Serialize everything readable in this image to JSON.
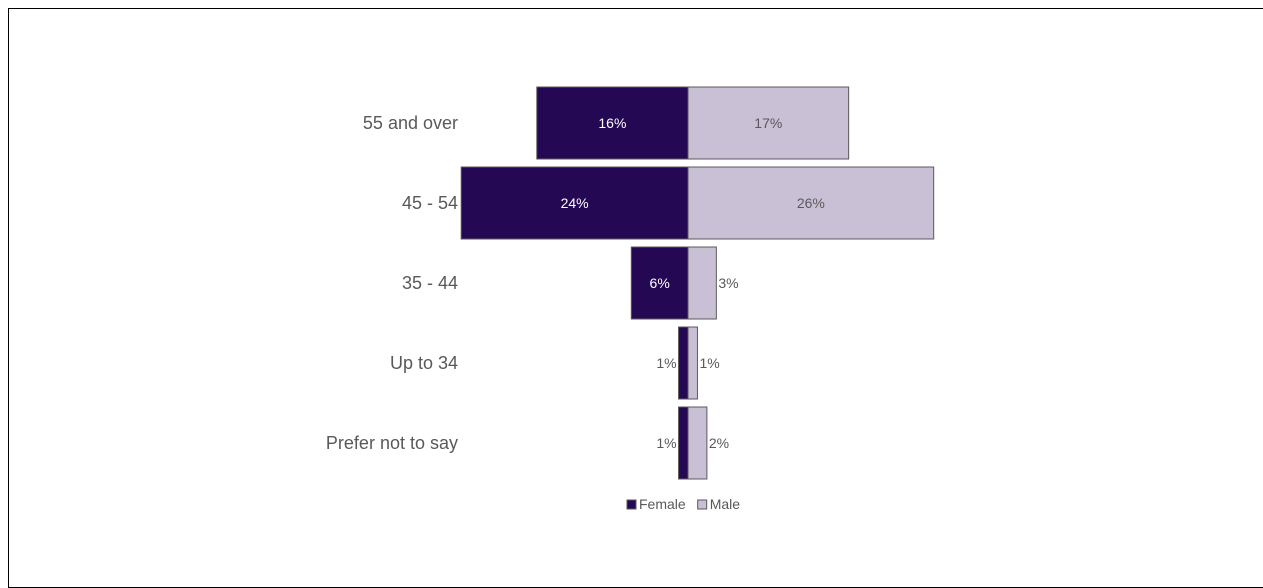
{
  "chart_data": {
    "type": "bar",
    "orientation": "horizontal-diverging",
    "categories": [
      "55 and over",
      "45 - 54",
      "35 - 44",
      "Up to 34",
      "Prefer not to say"
    ],
    "series": [
      {
        "name": "Female",
        "values": [
          16,
          24,
          6,
          1,
          1
        ],
        "labels": [
          "16%",
          "24%",
          "6%",
          "1%",
          "1%"
        ],
        "color": "#250854"
      },
      {
        "name": "Male",
        "values": [
          17,
          26,
          3,
          1,
          2
        ],
        "labels": [
          "17%",
          "26%",
          "3%",
          "1%",
          "2%"
        ],
        "color": "#c9c0d6"
      }
    ],
    "value_unit": "%",
    "legend": {
      "position": "bottom"
    },
    "grid": false,
    "border_color": "#595959"
  }
}
